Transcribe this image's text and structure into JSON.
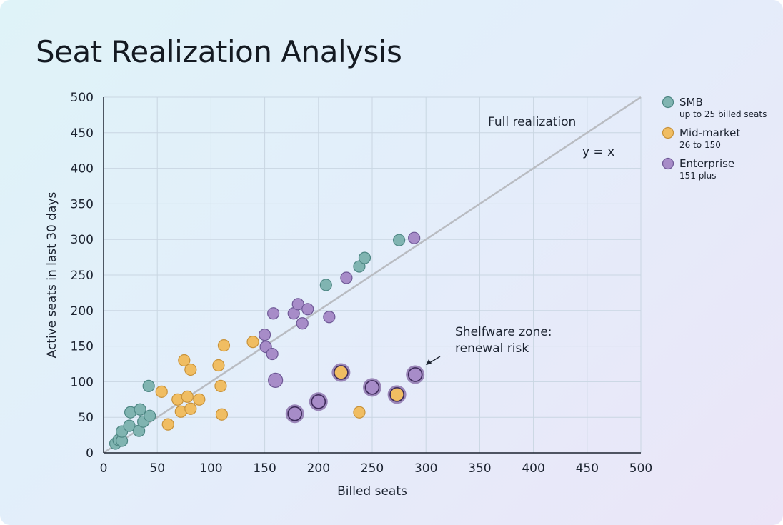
{
  "chart_data": {
    "type": "scatter",
    "title": "Seat Realization Analysis",
    "xlabel": "Billed seats",
    "ylabel": "Active seats in last 30 days",
    "xlim": [
      0,
      500
    ],
    "ylim": [
      0,
      500
    ],
    "xticks": [
      0,
      50,
      100,
      150,
      200,
      250,
      300,
      350,
      400,
      450,
      500
    ],
    "yticks": [
      0,
      50,
      100,
      150,
      200,
      250,
      300,
      350,
      400,
      450,
      500
    ],
    "grid": true,
    "legend_position": "right",
    "reference_line": {
      "label": "Full realization",
      "equation": "y = x",
      "color": "#b9bcc2"
    },
    "annotation": {
      "lines": [
        "Shelfware zone:",
        "renewal risk"
      ],
      "points_to": [
        290,
        110
      ]
    },
    "series": [
      {
        "name": "SMB",
        "subtitle": "up to 25 billed seats",
        "color": "#80b4b1",
        "stroke": "#4e8784",
        "points": [
          [
            11,
            13
          ],
          [
            14,
            18
          ],
          [
            17,
            17
          ],
          [
            17,
            30
          ],
          [
            24,
            38
          ],
          [
            33,
            31
          ],
          [
            25,
            57
          ],
          [
            34,
            61
          ],
          [
            37,
            44
          ],
          [
            43,
            52
          ],
          [
            42,
            94
          ],
          [
            207,
            236
          ],
          [
            238,
            262
          ],
          [
            243,
            274
          ],
          [
            275,
            299
          ]
        ]
      },
      {
        "name": "Mid-market",
        "subtitle": "26 to 150",
        "color": "#f0bd62",
        "stroke": "#c8923a",
        "points": [
          [
            54,
            86
          ],
          [
            60,
            40
          ],
          [
            69,
            75
          ],
          [
            78,
            79
          ],
          [
            72,
            58
          ],
          [
            81,
            62
          ],
          [
            89,
            75
          ],
          [
            75,
            130
          ],
          [
            81,
            117
          ],
          [
            107,
            123
          ],
          [
            109,
            94
          ],
          [
            110,
            54
          ],
          [
            112,
            151
          ],
          [
            139,
            156
          ],
          [
            238,
            57
          ]
        ],
        "shelfware": [
          [
            221,
            113
          ],
          [
            273,
            82
          ]
        ]
      },
      {
        "name": "Enterprise",
        "subtitle": "151 plus",
        "color": "#a78cc8",
        "stroke": "#6e5896",
        "points": [
          [
            150,
            166
          ],
          [
            151,
            149
          ],
          [
            157,
            139
          ],
          [
            158,
            196
          ],
          [
            177,
            196
          ],
          [
            181,
            209
          ],
          [
            190,
            202
          ],
          [
            185,
            182
          ],
          [
            210,
            191
          ],
          [
            226,
            246
          ],
          [
            289,
            302
          ]
        ],
        "large": [
          [
            160,
            102
          ]
        ],
        "shelfware": [
          [
            178,
            55
          ],
          [
            200,
            72
          ],
          [
            250,
            92
          ],
          [
            290,
            110
          ]
        ]
      }
    ]
  }
}
